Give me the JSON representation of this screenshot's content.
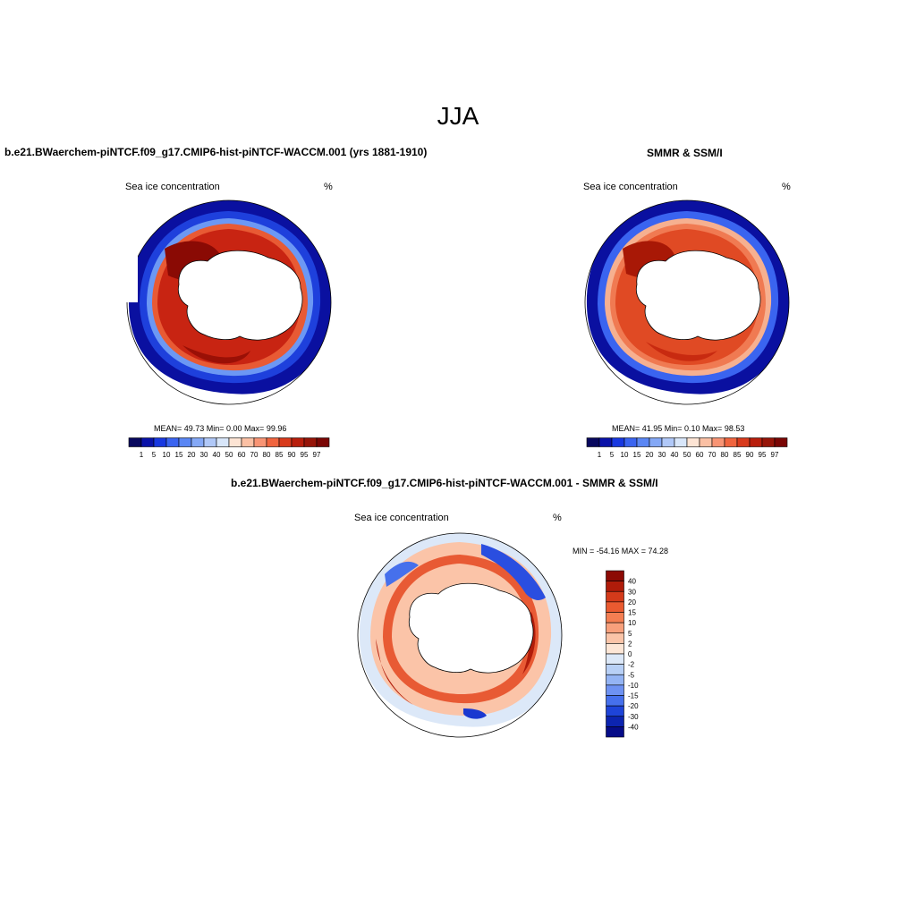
{
  "title": "JJA",
  "panels": {
    "model": {
      "heading": "b.e21.BWaerchem-piNTCF.f09_g17.CMIP6-hist-piNTCF-WACCM.001 (yrs 1881-1910)",
      "left_label": "Sea ice concentration",
      "right_label": "%",
      "stats": "MEAN=  49.73  Min=    0.00  Max=  99.96"
    },
    "obs": {
      "heading": "SMMR & SSM/I",
      "left_label": "Sea ice concentration",
      "right_label": "%",
      "stats": "MEAN=  41.95  Min=    0.10  Max=  98.53"
    },
    "diff": {
      "heading": "b.e21.BWaerchem-piNTCF.f09_g17.CMIP6-hist-piNTCF-WACCM.001 - SMMR & SSM/I",
      "left_label": "Sea ice concentration",
      "right_label": "%",
      "stats": "MIN = -54.16 MAX =  74.28"
    }
  },
  "colorbar_horizontal": {
    "labels": [
      "1",
      "5",
      "10",
      "15",
      "20",
      "30",
      "40",
      "50",
      "60",
      "70",
      "80",
      "85",
      "90",
      "95",
      "97"
    ],
    "colors": [
      "#08085e",
      "#0a12a8",
      "#1838e0",
      "#3a64f0",
      "#5a86f4",
      "#84a8f6",
      "#b0c8f8",
      "#d8e6fa",
      "#fde4d4",
      "#fbc0a4",
      "#f89474",
      "#f0643e",
      "#d83a1c",
      "#b81e0c",
      "#961408",
      "#7a0604"
    ]
  },
  "colorbar_vertical": {
    "labels": [
      "40",
      "30",
      "20",
      "15",
      "10",
      "5",
      "2",
      "0",
      "-2",
      "-5",
      "-10",
      "-15",
      "-20",
      "-30",
      "-40"
    ],
    "colors": [
      "#8c0a04",
      "#b01c0a",
      "#d43a1a",
      "#ea5a30",
      "#f47e52",
      "#f8a07c",
      "#fbc4a8",
      "#fde6d6",
      "#dce8f8",
      "#b8d0f6",
      "#94b4f4",
      "#6e92f2",
      "#4670ec",
      "#1e44d8",
      "#0c24b0",
      "#060c88"
    ]
  }
}
